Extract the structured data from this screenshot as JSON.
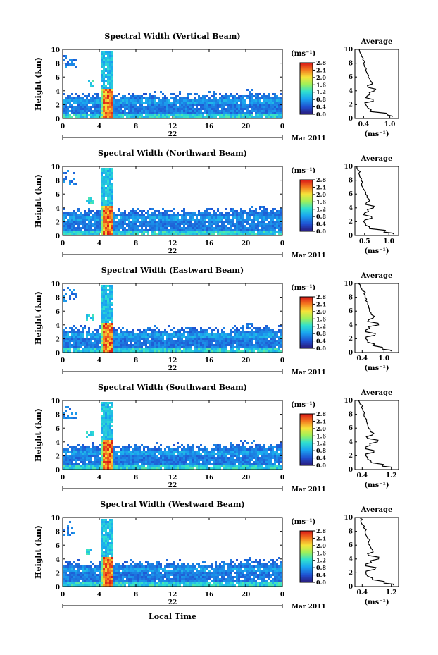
{
  "figure": {
    "month_label": "Mar 2011",
    "date_label": "22",
    "xlabel": "Local Time",
    "colorbar_unit": "(ms⁻¹)",
    "average_title": "Average",
    "average_unit": "(ms⁻¹)"
  },
  "chart_data": [
    {
      "type": "heatmap",
      "title": "Spectral Width (Vertical Beam)",
      "ylabel": "Height (km)",
      "xlim": [
        0,
        24
      ],
      "ylim": [
        0,
        10
      ],
      "x_ticks": [
        "0",
        "4",
        "8",
        "12",
        "16",
        "20",
        "0"
      ],
      "y_ticks": [
        "0",
        "2",
        "4",
        "6",
        "8",
        "10"
      ],
      "colorbar": {
        "min": 0.0,
        "max": 2.8,
        "ticks": [
          "0.0",
          "0.4",
          "0.8",
          "1.2",
          "1.6",
          "2.0",
          "2.4",
          "2.8"
        ]
      },
      "features": {
        "dense_layer_top_km": 3.2,
        "convective_column_hours": [
          4.0,
          5.5
        ],
        "column_top_km": 10.0,
        "precip_core_top_km": 4.4
      },
      "average_profile": {
        "xlim": [
          0.2,
          1.2
        ],
        "x_ticks": [
          "0.4",
          "1.0"
        ],
        "height_km": [
          0.2,
          0.5,
          1.0,
          1.5,
          2.0,
          2.5,
          3.0,
          3.5,
          4.0,
          4.5,
          5.0,
          5.5,
          6.0,
          6.5,
          7.0,
          7.5,
          8.0,
          8.5,
          9.0,
          9.5,
          10.0
        ],
        "width": [
          1.05,
          0.95,
          0.55,
          0.5,
          0.45,
          0.62,
          0.45,
          0.55,
          0.65,
          0.5,
          0.6,
          0.55,
          0.5,
          0.48,
          0.45,
          0.42,
          0.4,
          0.38,
          0.35,
          0.32,
          0.3
        ]
      }
    },
    {
      "type": "heatmap",
      "title": "Spectral Width (Northward Beam)",
      "ylabel": "Height (km)",
      "xlim": [
        0,
        24
      ],
      "ylim": [
        0,
        10
      ],
      "x_ticks": [
        "0",
        "4",
        "8",
        "12",
        "16",
        "20",
        "0"
      ],
      "y_ticks": [
        "0",
        "2",
        "4",
        "6",
        "8",
        "10"
      ],
      "colorbar": {
        "min": 0.0,
        "max": 2.8,
        "ticks": [
          "0.0",
          "0.4",
          "0.8",
          "1.2",
          "1.6",
          "2.0",
          "2.4",
          "2.8"
        ]
      },
      "features": {
        "dense_layer_top_km": 3.4,
        "convective_column_hours": [
          4.0,
          5.5
        ],
        "column_top_km": 10.0,
        "precip_core_top_km": 4.4
      },
      "average_profile": {
        "xlim": [
          0.3,
          1.2
        ],
        "x_ticks": [
          "0.5",
          "1.0"
        ],
        "height_km": [
          0.2,
          0.5,
          1.0,
          1.5,
          2.0,
          2.5,
          3.0,
          3.5,
          4.0,
          4.5,
          5.0,
          5.5,
          6.0,
          6.5,
          7.0,
          7.5,
          8.0,
          8.5,
          9.0,
          9.5,
          10.0
        ],
        "width": [
          1.1,
          0.9,
          0.6,
          0.52,
          0.48,
          0.65,
          0.48,
          0.58,
          0.68,
          0.52,
          0.6,
          0.55,
          0.52,
          0.5,
          0.46,
          0.44,
          0.42,
          0.4,
          0.38,
          0.36,
          0.34
        ]
      }
    },
    {
      "type": "heatmap",
      "title": "Spectral Width (Eastward Beam)",
      "ylabel": "Height (km)",
      "xlim": [
        0,
        24
      ],
      "ylim": [
        0,
        10
      ],
      "x_ticks": [
        "0",
        "4",
        "8",
        "12",
        "16",
        "20",
        "0"
      ],
      "y_ticks": [
        "0",
        "2",
        "4",
        "6",
        "8",
        "10"
      ],
      "colorbar": {
        "min": 0.0,
        "max": 2.8,
        "ticks": [
          "0.0",
          "0.4",
          "0.8",
          "1.2",
          "1.6",
          "2.0",
          "2.4",
          "2.8"
        ]
      },
      "features": {
        "dense_layer_top_km": 3.2,
        "convective_column_hours": [
          4.0,
          5.5
        ],
        "column_top_km": 10.0,
        "precip_core_top_km": 4.4
      },
      "average_profile": {
        "xlim": [
          0.2,
          1.4
        ],
        "x_ticks": [
          "0.4",
          "1.0"
        ],
        "height_km": [
          0.2,
          0.5,
          1.0,
          1.5,
          2.0,
          2.5,
          3.0,
          3.5,
          4.0,
          4.5,
          5.0,
          5.5,
          6.0,
          6.5,
          7.0,
          7.5,
          8.0,
          8.5,
          9.0,
          9.5,
          10.0
        ],
        "width": [
          1.2,
          0.95,
          0.7,
          0.55,
          0.5,
          0.75,
          0.5,
          0.6,
          0.85,
          0.55,
          0.7,
          0.65,
          0.6,
          0.58,
          0.55,
          0.5,
          0.48,
          0.45,
          0.4,
          0.35,
          0.3
        ]
      }
    },
    {
      "type": "heatmap",
      "title": "Spectral Width (Southward Beam)",
      "ylabel": "Height (km)",
      "xlim": [
        0,
        24
      ],
      "ylim": [
        0,
        10
      ],
      "x_ticks": [
        "0",
        "4",
        "8",
        "12",
        "16",
        "20",
        "0"
      ],
      "y_ticks": [
        "0",
        "2",
        "4",
        "6",
        "8",
        "10"
      ],
      "colorbar": {
        "min": 0.0,
        "max": 2.8,
        "ticks": [
          "0.0",
          "0.4",
          "0.8",
          "1.2",
          "1.6",
          "2.0",
          "2.4",
          "2.8"
        ]
      },
      "features": {
        "dense_layer_top_km": 3.2,
        "convective_column_hours": [
          4.0,
          5.5
        ],
        "column_top_km": 10.0,
        "precip_core_top_km": 4.4
      },
      "average_profile": {
        "xlim": [
          0.2,
          1.4
        ],
        "x_ticks": [
          "0.4",
          "1.2"
        ],
        "height_km": [
          0.2,
          0.5,
          1.0,
          1.5,
          2.0,
          2.5,
          3.0,
          3.5,
          4.0,
          4.5,
          5.0,
          5.5,
          6.0,
          6.5,
          7.0,
          7.5,
          8.0,
          8.5,
          9.0,
          9.5,
          10.0
        ],
        "width": [
          1.2,
          0.95,
          0.65,
          0.55,
          0.5,
          0.72,
          0.5,
          0.62,
          0.82,
          0.55,
          0.68,
          0.62,
          0.58,
          0.55,
          0.52,
          0.48,
          0.45,
          0.42,
          0.38,
          0.34,
          0.3
        ]
      }
    },
    {
      "type": "heatmap",
      "title": "Spectral Width (Westward Beam)",
      "ylabel": "Height (km)",
      "xlim": [
        0,
        24
      ],
      "ylim": [
        0,
        10
      ],
      "x_ticks": [
        "0",
        "4",
        "8",
        "12",
        "16",
        "20",
        "0"
      ],
      "y_ticks": [
        "0",
        "2",
        "4",
        "6",
        "8",
        "10"
      ],
      "colorbar": {
        "min": 0.0,
        "max": 2.8,
        "ticks": [
          "0.0",
          "0.4",
          "0.8",
          "1.2",
          "1.6",
          "2.0",
          "2.4",
          "2.8"
        ]
      },
      "features": {
        "dense_layer_top_km": 3.3,
        "convective_column_hours": [
          4.0,
          5.5
        ],
        "column_top_km": 10.0,
        "precip_core_top_km": 4.4
      },
      "average_profile": {
        "xlim": [
          0.2,
          1.4
        ],
        "x_ticks": [
          "0.4",
          "1.2"
        ],
        "height_km": [
          0.2,
          0.5,
          1.0,
          1.5,
          2.0,
          2.5,
          3.0,
          3.5,
          4.0,
          4.5,
          5.0,
          5.5,
          6.0,
          6.5,
          7.0,
          7.5,
          8.0,
          8.5,
          9.0,
          9.5,
          10.0
        ],
        "width": [
          1.25,
          1.0,
          0.68,
          0.55,
          0.5,
          0.75,
          0.5,
          0.65,
          0.85,
          0.58,
          0.7,
          0.65,
          0.6,
          0.58,
          0.55,
          0.5,
          0.48,
          0.44,
          0.4,
          0.36,
          0.32
        ]
      }
    }
  ]
}
